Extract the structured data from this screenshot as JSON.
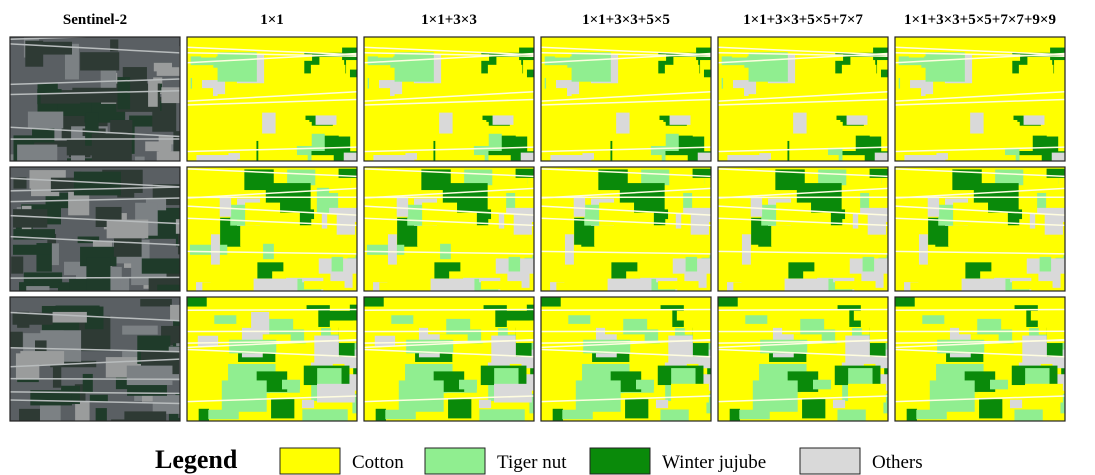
{
  "columns": [
    "Sentinel-2",
    "1×1",
    "1×1+3×3",
    "1×1+3×3+5×5",
    "1×1+3×3+5×5+7×7",
    "1×1+3×3+5×5+7×7+9×9"
  ],
  "legend": {
    "title": "Legend",
    "items": [
      {
        "label": "Cotton",
        "color": "#ffff00"
      },
      {
        "label": "Tiger nut",
        "color": "#90ee90"
      },
      {
        "label": "Winter jujube",
        "color": "#0a8a0a"
      },
      {
        "label": "Others",
        "color": "#d9d9d9"
      }
    ]
  }
}
